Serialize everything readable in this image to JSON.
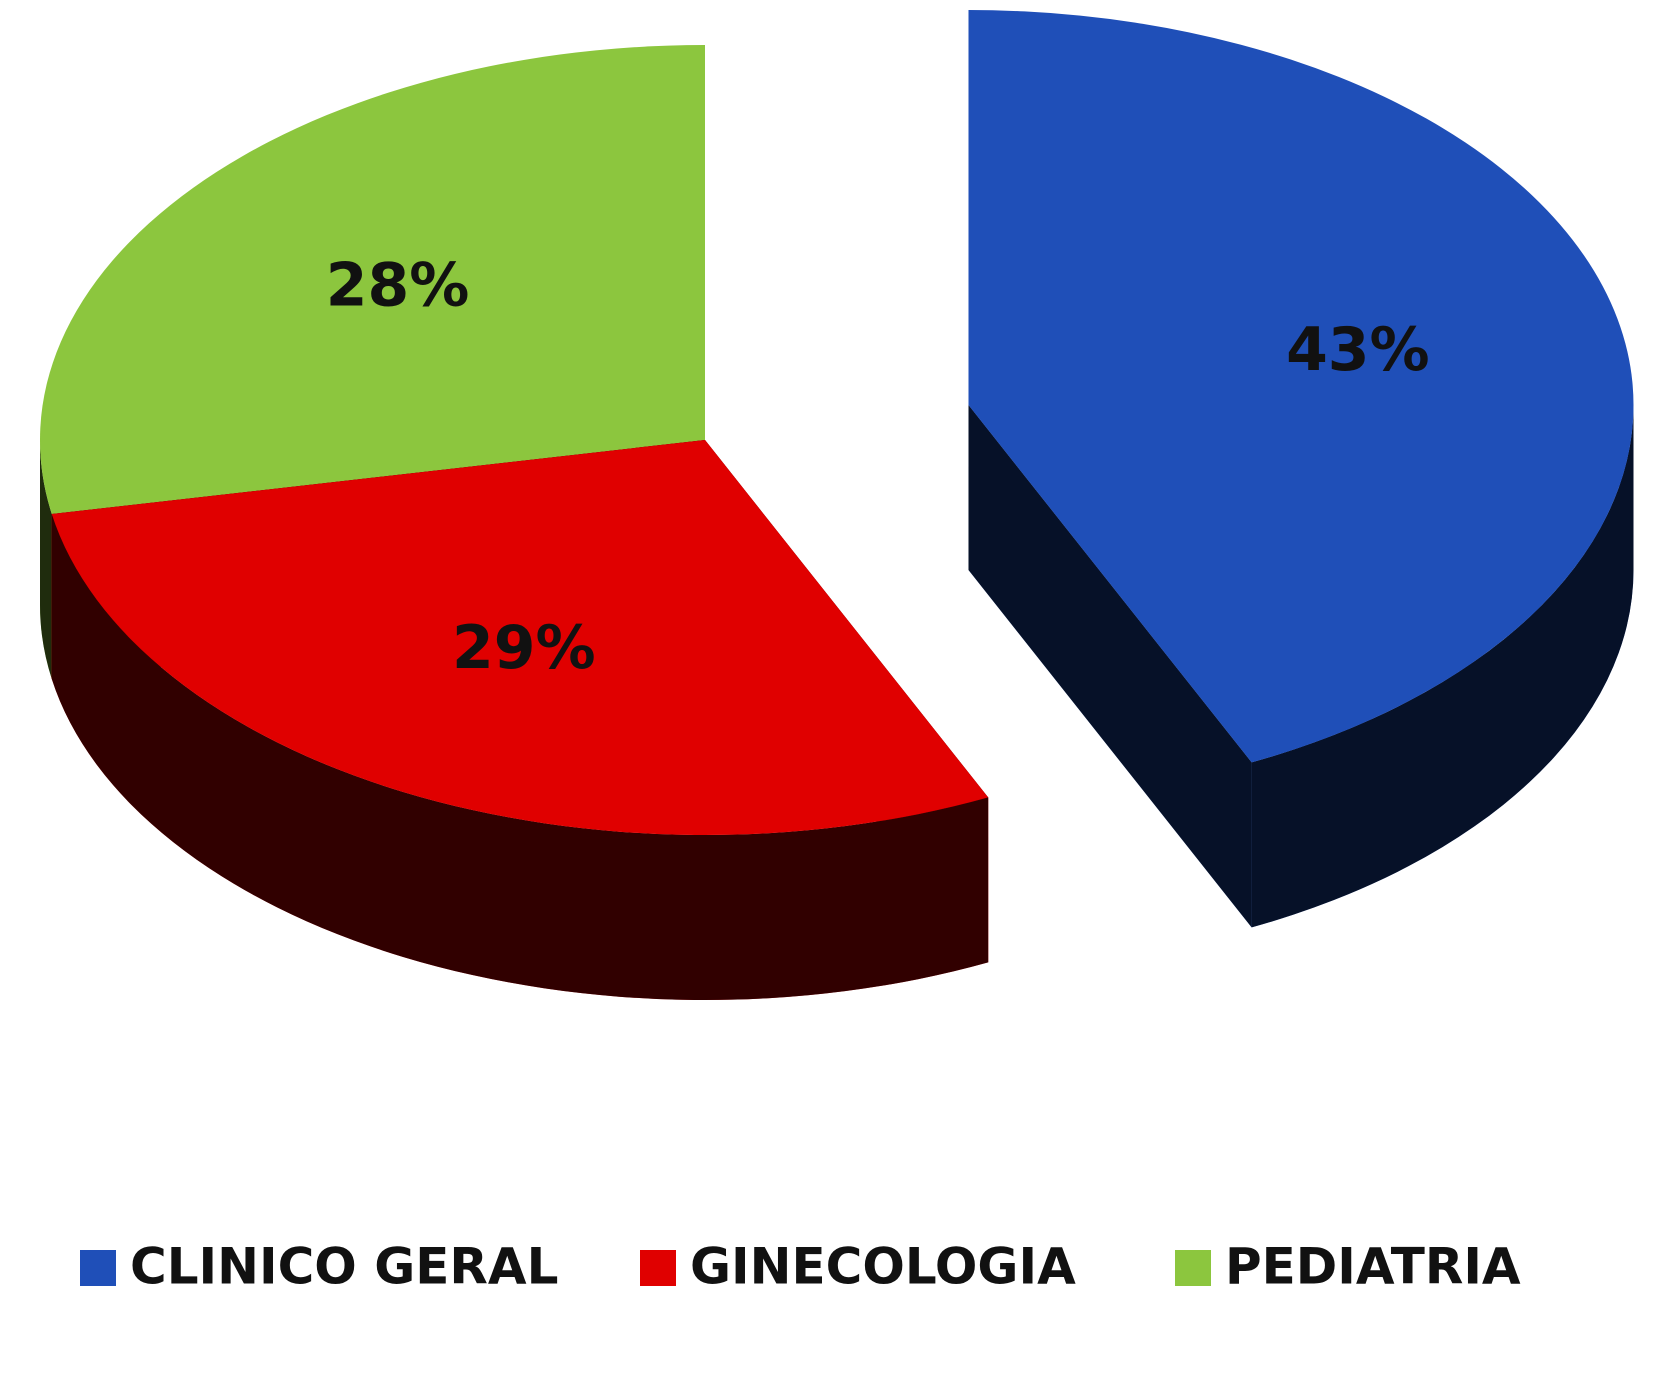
{
  "chart_data": {
    "type": "pie",
    "categories": [
      "CLINICO GERAL",
      "GINECOLOGIA",
      "PEDIATRIA"
    ],
    "values": [
      43,
      29,
      28
    ],
    "value_labels": [
      "43%",
      "29%",
      "28%"
    ],
    "colors": [
      "#1f4fb8",
      "#e00000",
      "#8cc63e"
    ],
    "legend": "bottom"
  }
}
